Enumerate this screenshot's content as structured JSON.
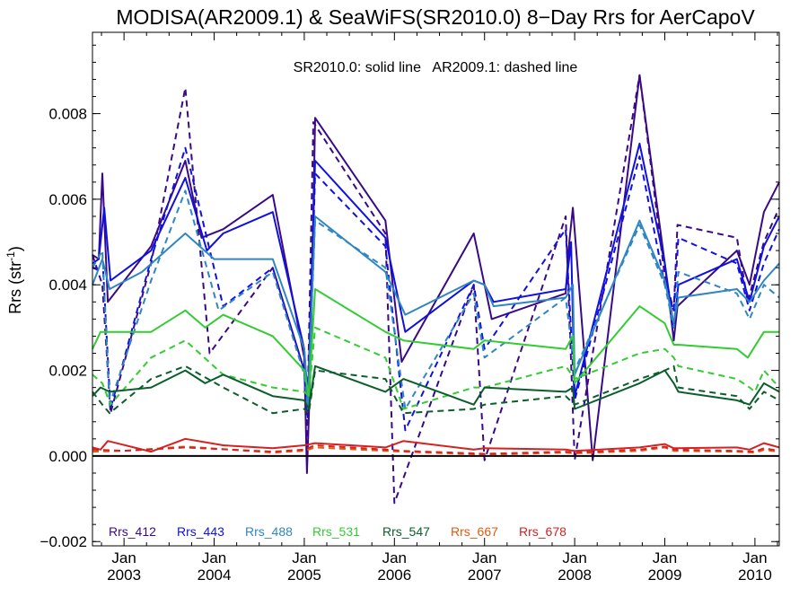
{
  "chart_data": {
    "type": "line",
    "title": "MODISA(AR2009.1) & SeaWiFS(SR2010.0) 8−Day Rrs for AerCapoV",
    "annotation": "SR2010.0: solid line   AR2009.1: dashed line",
    "ylabel": "Rrs (str",
    "ylabel_sup": "-1",
    "ylabel_close": ")",
    "xlim": [
      2002.65,
      2010.27
    ],
    "ylim": [
      -0.0021,
      0.0099
    ],
    "grid": false,
    "zero_line": true,
    "yticks": [
      {
        "value": -0.002,
        "label": "−0.002"
      },
      {
        "value": 0.0,
        "label": "0.000"
      },
      {
        "value": 0.002,
        "label": "0.002"
      },
      {
        "value": 0.004,
        "label": "0.004"
      },
      {
        "value": 0.006,
        "label": "0.006"
      },
      {
        "value": 0.008,
        "label": "0.008"
      }
    ],
    "xticks": [
      {
        "value": 2003.0,
        "top": "Jan",
        "bottom": "2003"
      },
      {
        "value": 2004.0,
        "top": "Jan",
        "bottom": "2004"
      },
      {
        "value": 2005.0,
        "top": "Jan",
        "bottom": "2005"
      },
      {
        "value": 2006.0,
        "top": "Jan",
        "bottom": "2006"
      },
      {
        "value": 2007.0,
        "top": "Jan",
        "bottom": "2007"
      },
      {
        "value": 2008.0,
        "top": "Jan",
        "bottom": "2008"
      },
      {
        "value": 2009.0,
        "top": "Jan",
        "bottom": "2009"
      },
      {
        "value": 2010.0,
        "top": "Jan",
        "bottom": "2010"
      }
    ],
    "legend_placement": "bottom-left",
    "series": [
      {
        "name": "Rrs_412",
        "color": "#3a0a86",
        "style": "solid",
        "x": [
          2002.65,
          2002.72,
          2002.76,
          2002.82,
          2003.3,
          2003.68,
          2003.86,
          2004.1,
          2004.65,
          2005.0,
          2005.03,
          2005.07,
          2005.12,
          2005.9,
          2006.08,
          2006.88,
          2007.0,
          2007.08,
          2007.9,
          2007.94,
          2007.98,
          2008.2,
          2008.72,
          2009.0,
          2009.1,
          2009.14,
          2009.8,
          2009.94,
          2010.1,
          2010.27
        ],
        "y": [
          0.0047,
          0.0046,
          0.0066,
          0.0036,
          0.0049,
          0.0069,
          0.0051,
          0.0053,
          0.0061,
          0.0023,
          -0.0004,
          0.0022,
          0.0079,
          0.0055,
          0.0022,
          0.0052,
          0.004,
          0.0032,
          0.0038,
          0.005,
          0.0058,
          -0.0001,
          0.0089,
          0.0045,
          0.0027,
          0.0035,
          0.0048,
          0.004,
          0.0057,
          0.0064
        ]
      },
      {
        "name": "Rrs_412",
        "color": "#3a0a86",
        "style": "dashed",
        "x": [
          2002.65,
          2002.76,
          2002.85,
          2003.3,
          2003.68,
          2003.95,
          2004.65,
          2005.0,
          2005.03,
          2005.1,
          2005.9,
          2006.0,
          2006.88,
          2007.0,
          2007.9,
          2008.0,
          2008.72,
          2009.0,
          2009.1,
          2009.14,
          2009.8,
          2009.92,
          2010.1,
          2010.27
        ],
        "y": [
          0.0047,
          0.004,
          0.001,
          0.0045,
          0.0086,
          0.0024,
          0.0044,
          0.002,
          0.0004,
          0.0078,
          0.0052,
          -0.0011,
          0.004,
          -0.0001,
          0.0056,
          -0.0001,
          0.0089,
          0.0042,
          0.0034,
          0.0054,
          0.0051,
          0.0036,
          0.005,
          0.0058
        ]
      },
      {
        "name": "Rrs_443",
        "color": "#1010e0",
        "style": "solid",
        "x": [
          2002.65,
          2002.72,
          2002.78,
          2002.85,
          2003.3,
          2003.68,
          2003.92,
          2004.1,
          2004.65,
          2005.0,
          2005.04,
          2005.12,
          2005.9,
          2006.12,
          2006.88,
          2007.0,
          2007.1,
          2007.9,
          2007.96,
          2008.0,
          2008.72,
          2009.0,
          2009.1,
          2009.15,
          2009.8,
          2009.94,
          2010.1,
          2010.27
        ],
        "y": [
          0.0045,
          0.0046,
          0.0058,
          0.0041,
          0.0048,
          0.0065,
          0.0048,
          0.0052,
          0.0057,
          0.0025,
          0.0013,
          0.0069,
          0.0051,
          0.0029,
          0.0041,
          0.004,
          0.0036,
          0.0039,
          0.005,
          0.0014,
          0.0073,
          0.0045,
          0.003,
          0.004,
          0.0046,
          0.0036,
          0.0049,
          0.0056
        ]
      },
      {
        "name": "Rrs_443",
        "color": "#1010e0",
        "style": "dashed",
        "x": [
          2002.65,
          2002.77,
          2002.85,
          2003.3,
          2003.68,
          2004.1,
          2004.65,
          2005.0,
          2005.04,
          2005.12,
          2005.9,
          2006.12,
          2006.88,
          2007.0,
          2007.9,
          2008.0,
          2008.72,
          2009.0,
          2009.1,
          2009.15,
          2009.8,
          2009.94,
          2010.1,
          2010.27
        ],
        "y": [
          0.0044,
          0.0043,
          0.0011,
          0.0046,
          0.0072,
          0.0035,
          0.0044,
          0.002,
          0.0009,
          0.0066,
          0.0049,
          0.0006,
          0.004,
          0.0025,
          0.0053,
          0.0013,
          0.007,
          0.004,
          0.0034,
          0.0051,
          0.0045,
          0.0034,
          0.0045,
          0.0053
        ]
      },
      {
        "name": "Rrs_488",
        "color": "#2f86c2",
        "style": "solid",
        "x": [
          2002.65,
          2002.76,
          2002.84,
          2003.2,
          2003.68,
          2004.0,
          2004.65,
          2005.0,
          2005.04,
          2005.12,
          2005.9,
          2006.12,
          2006.88,
          2007.0,
          2007.1,
          2007.9,
          2007.98,
          2008.0,
          2008.72,
          2009.0,
          2009.1,
          2009.15,
          2009.8,
          2009.94,
          2010.1,
          2010.27
        ],
        "y": [
          0.004,
          0.0046,
          0.0039,
          0.0043,
          0.0052,
          0.0046,
          0.0046,
          0.0025,
          0.0012,
          0.0056,
          0.0043,
          0.0033,
          0.0041,
          0.004,
          0.0035,
          0.0037,
          0.004,
          0.0019,
          0.0055,
          0.0041,
          0.0031,
          0.0037,
          0.0039,
          0.0036,
          0.0041,
          0.0045
        ]
      },
      {
        "name": "Rrs_488",
        "color": "#2f86c2",
        "style": "dashed",
        "x": [
          2002.65,
          2002.76,
          2002.84,
          2003.3,
          2003.68,
          2004.05,
          2004.65,
          2005.0,
          2005.04,
          2005.12,
          2005.9,
          2006.12,
          2006.88,
          2007.0,
          2007.9,
          2008.0,
          2008.72,
          2009.0,
          2009.1,
          2009.15,
          2009.8,
          2009.94,
          2010.1,
          2010.27
        ],
        "y": [
          0.0044,
          0.0048,
          0.0012,
          0.0041,
          0.0062,
          0.0034,
          0.0043,
          0.0019,
          0.0011,
          0.0055,
          0.0044,
          0.0011,
          0.0038,
          0.0023,
          0.0037,
          0.002,
          0.0054,
          0.004,
          0.003,
          0.0043,
          0.0038,
          0.0032,
          0.004,
          0.0037
        ]
      },
      {
        "name": "Rrs_531",
        "color": "#33cc33",
        "style": "solid",
        "x": [
          2002.65,
          2002.74,
          2003.3,
          2003.68,
          2003.9,
          2004.1,
          2004.65,
          2005.0,
          2005.05,
          2005.12,
          2005.9,
          2006.1,
          2006.88,
          2007.0,
          2007.9,
          2007.98,
          2008.0,
          2008.72,
          2009.0,
          2009.1,
          2009.15,
          2009.8,
          2009.92,
          2010.1,
          2010.27
        ],
        "y": [
          0.0025,
          0.0029,
          0.0029,
          0.0034,
          0.003,
          0.0033,
          0.0028,
          0.002,
          0.0014,
          0.0039,
          0.0029,
          0.0027,
          0.0025,
          0.0027,
          0.0025,
          0.0028,
          0.0017,
          0.0035,
          0.0031,
          0.0026,
          0.0026,
          0.0025,
          0.0023,
          0.0029,
          0.0029
        ]
      },
      {
        "name": "Rrs_531",
        "color": "#33cc33",
        "style": "dashed",
        "x": [
          2002.65,
          2002.76,
          2002.85,
          2003.3,
          2003.68,
          2004.1,
          2004.65,
          2005.0,
          2005.05,
          2005.12,
          2005.9,
          2006.1,
          2006.88,
          2007.0,
          2007.9,
          2008.0,
          2008.72,
          2009.0,
          2009.1,
          2009.15,
          2009.8,
          2009.94,
          2010.0,
          2010.1,
          2010.27
        ],
        "y": [
          0.0019,
          0.0017,
          0.0012,
          0.0023,
          0.0027,
          0.0019,
          0.0016,
          0.0015,
          0.0014,
          0.003,
          0.0023,
          0.0011,
          0.0016,
          0.0016,
          0.0021,
          0.0018,
          0.0024,
          0.0025,
          0.0023,
          0.0021,
          0.0018,
          0.0016,
          0.0015,
          0.002,
          0.0016
        ]
      },
      {
        "name": "Rrs_547",
        "color": "#0b5e2b",
        "style": "solid",
        "x": [
          2002.65,
          2002.74,
          2002.84,
          2003.3,
          2003.68,
          2003.9,
          2004.1,
          2004.65,
          2005.0,
          2005.05,
          2005.12,
          2005.9,
          2006.1,
          2006.88,
          2007.0,
          2007.9,
          2007.98,
          2008.0,
          2008.72,
          2009.0,
          2009.1,
          2009.15,
          2009.8,
          2009.94,
          2010.1,
          2010.27
        ],
        "y": [
          0.0014,
          0.0016,
          0.0015,
          0.0016,
          0.002,
          0.0017,
          0.0019,
          0.0014,
          0.0013,
          0.0011,
          0.0021,
          0.0015,
          0.0018,
          0.0012,
          0.0016,
          0.0015,
          0.0016,
          0.0011,
          0.0017,
          0.002,
          0.0017,
          0.0015,
          0.0013,
          0.0012,
          0.0017,
          0.0015
        ]
      },
      {
        "name": "Rrs_547",
        "color": "#0b5e2b",
        "style": "dashed",
        "x": [
          2002.65,
          2002.76,
          2002.84,
          2003.3,
          2003.68,
          2004.1,
          2004.65,
          2005.0,
          2005.05,
          2005.12,
          2005.9,
          2006.1,
          2006.88,
          2007.0,
          2007.9,
          2008.0,
          2008.72,
          2009.0,
          2009.1,
          2009.15,
          2009.8,
          2009.94,
          2010.1,
          2010.27
        ],
        "y": [
          0.0015,
          0.0012,
          0.001,
          0.0018,
          0.0021,
          0.0016,
          0.001,
          0.0011,
          0.001,
          0.002,
          0.0018,
          0.001,
          0.0011,
          0.0012,
          0.0014,
          0.0012,
          0.0018,
          0.002,
          0.0021,
          0.0016,
          0.0014,
          0.0011,
          0.0015,
          0.0013
        ]
      },
      {
        "name": "Rrs_667",
        "color": "#e05a10",
        "style": "dashed",
        "x": [
          2002.65,
          2003.0,
          2003.68,
          2004.65,
          2005.0,
          2005.12,
          2005.9,
          2006.1,
          2006.88,
          2007.0,
          2007.9,
          2008.0,
          2008.72,
          2009.0,
          2009.1,
          2009.8,
          2010.0,
          2010.1,
          2010.27
        ],
        "y": [
          0.0001,
          0.00012,
          0.00022,
          8e-05,
          0.00012,
          0.0002,
          0.00012,
          0.0001,
          4e-05,
          3e-05,
          8e-05,
          6e-05,
          0.00012,
          0.0002,
          0.00012,
          0.0001,
          8e-05,
          0.00014,
          0.0001
        ]
      },
      {
        "name": "Rrs_678",
        "color": "#d42222",
        "style": "solid",
        "x": [
          2002.65,
          2002.74,
          2002.82,
          2003.3,
          2003.68,
          2004.1,
          2004.65,
          2005.0,
          2005.12,
          2005.9,
          2006.1,
          2006.88,
          2007.0,
          2007.9,
          2008.0,
          2008.72,
          2009.0,
          2009.1,
          2009.8,
          2009.94,
          2010.1,
          2010.27
        ],
        "y": [
          0.0002,
          0.00015,
          0.00035,
          0.0001,
          0.0004,
          0.00025,
          0.00018,
          0.00025,
          0.0003,
          0.0002,
          0.00035,
          0.00015,
          0.00018,
          0.00015,
          0.00012,
          0.0002,
          0.00028,
          0.00018,
          0.0002,
          0.00015,
          0.0003,
          0.0002
        ]
      },
      {
        "name": "Rrs_678",
        "color": "#d42222",
        "style": "dashed",
        "x": [
          2002.65,
          2003.0,
          2003.68,
          2004.65,
          2005.0,
          2005.12,
          2005.9,
          2006.1,
          2006.88,
          2007.0,
          2007.9,
          2008.0,
          2008.72,
          2009.0,
          2009.1,
          2009.8,
          2010.0,
          2010.1,
          2010.27
        ],
        "y": [
          0.00015,
          0.00012,
          0.0002,
          0.0001,
          0.00015,
          0.00025,
          0.00015,
          0.00012,
          6e-05,
          5e-05,
          0.0001,
          8e-05,
          0.00015,
          0.00022,
          0.00015,
          0.00012,
          0.0001,
          0.00018,
          0.00012
        ]
      }
    ],
    "legend": [
      {
        "label": "Rrs_412",
        "color": "#3a0a86"
      },
      {
        "label": "Rrs_443",
        "color": "#1010e0"
      },
      {
        "label": "Rrs_488",
        "color": "#2f86c2"
      },
      {
        "label": "Rrs_531",
        "color": "#33cc33"
      },
      {
        "label": "Rrs_547",
        "color": "#0b5e2b"
      },
      {
        "label": "Rrs_667",
        "color": "#e05a10"
      },
      {
        "label": "Rrs_678",
        "color": "#d42222"
      }
    ]
  }
}
